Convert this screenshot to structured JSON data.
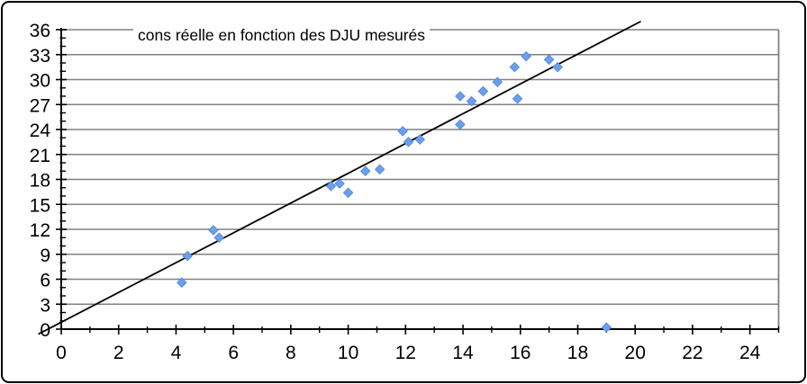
{
  "chart_data": {
    "type": "scatter",
    "title": "cons réelle en fonction des DJU mesurés",
    "xlabel": "",
    "ylabel": "",
    "xlim": [
      0,
      25
    ],
    "ylim": [
      0,
      36
    ],
    "x_tick_labels": [
      0,
      2,
      4,
      6,
      8,
      10,
      12,
      14,
      16,
      18,
      20,
      22,
      24
    ],
    "x_minor_step": 1,
    "y_tick_labels": [
      0,
      3,
      6,
      9,
      12,
      15,
      18,
      21,
      24,
      27,
      30,
      33,
      36
    ],
    "y_minor_step": 1,
    "grid": "horizontal-major-only",
    "legend": "none",
    "marker": {
      "shape": "diamond",
      "color": "#6D9EEB",
      "edge_color": "#4a86d8"
    },
    "colors": {
      "gridline": "#808080",
      "axis": "#000000",
      "trend_line": "#000000",
      "background": "#ffffff"
    },
    "points": [
      [
        4.2,
        5.6
      ],
      [
        4.4,
        8.8
      ],
      [
        5.3,
        11.9
      ],
      [
        5.5,
        11.0
      ],
      [
        9.4,
        17.2
      ],
      [
        9.7,
        17.5
      ],
      [
        10.0,
        16.4
      ],
      [
        10.6,
        19.0
      ],
      [
        11.1,
        19.2
      ],
      [
        11.9,
        23.8
      ],
      [
        12.1,
        22.5
      ],
      [
        12.5,
        22.8
      ],
      [
        13.9,
        24.6
      ],
      [
        13.9,
        28.0
      ],
      [
        14.3,
        27.4
      ],
      [
        14.7,
        28.6
      ],
      [
        15.2,
        29.7
      ],
      [
        15.8,
        31.5
      ],
      [
        15.9,
        27.7
      ],
      [
        16.2,
        32.8
      ],
      [
        17.0,
        32.4
      ],
      [
        17.3,
        31.5
      ],
      [
        19.0,
        0.2
      ]
    ],
    "trend_line": {
      "x1": -0.8,
      "y1": -0.6,
      "x2": 20.2,
      "y2": 37.0,
      "slope_approx": 1.8,
      "intercept_approx": 0
    }
  }
}
